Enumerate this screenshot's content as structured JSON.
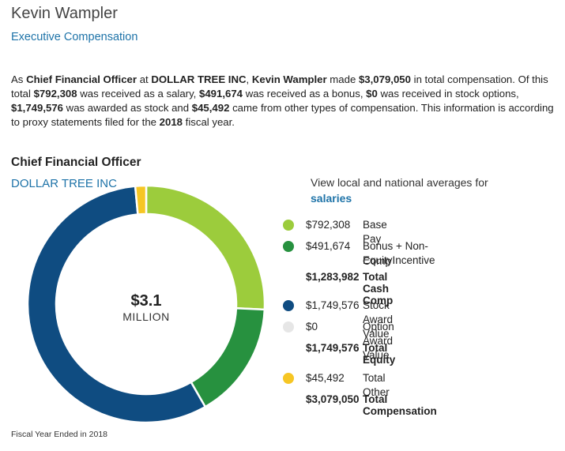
{
  "person": {
    "name": "Kevin Wampler",
    "link": "Executive Compensation"
  },
  "summary": {
    "p1": "As ",
    "title": "Chief Financial Officer",
    "p2": " at ",
    "company": "DOLLAR TREE INC",
    "p3": ", ",
    "name": "Kevin Wampler",
    "p4": " made ",
    "total": "$3,079,050",
    "p5": " in total compensation. Of this total ",
    "salary": "$792,308",
    "p6": " was received as a salary, ",
    "bonus": "$491,674",
    "p7": " was received as a bonus, ",
    "options": "$0",
    "p8": " was received in stock options, ",
    "stock": "$1,749,576",
    "p9": " was awarded as stock and ",
    "other": "$45,492",
    "p10": " came from other types of compensation. This information is according to proxy statements filed for the ",
    "year": "2018",
    "p11": " fiscal year."
  },
  "section": {
    "title": "Chief Financial Officer",
    "company": "DOLLAR TREE INC"
  },
  "averages": {
    "text": "View local and national averages for",
    "link": "salaries"
  },
  "center": {
    "value": "$3.1",
    "unit": "MILLION"
  },
  "colors": {
    "base": "#9ccc3c",
    "bonus": "#27913f",
    "stock": "#0f4c81",
    "option": "#e6e6e6",
    "other": "#f6c624"
  },
  "legend": {
    "base": {
      "value": "$792,308",
      "label": "Base Pay"
    },
    "bonus": {
      "value": "$491,674",
      "label_line1": "Bonus + Non-EquityIncentive",
      "label_line2": "Comp"
    },
    "cash_total": {
      "value": "$1,283,982",
      "label": "Total Cash Comp"
    },
    "stock": {
      "value": "$1,749,576",
      "label": "Stock Award Value"
    },
    "option": {
      "value": "$0",
      "label": "Option Award Value"
    },
    "equity_total": {
      "value": "$1,749,576",
      "label": "Total Equity"
    },
    "other": {
      "value": "$45,492",
      "label": "Total Other"
    },
    "comp_total": {
      "value": "$3,079,050",
      "label": "Total Compensation"
    }
  },
  "footer": "Fiscal Year Ended in 2018",
  "chart_data": {
    "type": "pie",
    "donut": true,
    "categories": [
      "Base Pay",
      "Bonus + Non-EquityIncentive Comp",
      "Stock Award Value",
      "Option Award Value",
      "Total Other"
    ],
    "values": [
      792308,
      491674,
      1749576,
      0,
      45492
    ],
    "colors": [
      "#9ccc3c",
      "#27913f",
      "#0f4c81",
      "#e6e6e6",
      "#f6c624"
    ]
  }
}
